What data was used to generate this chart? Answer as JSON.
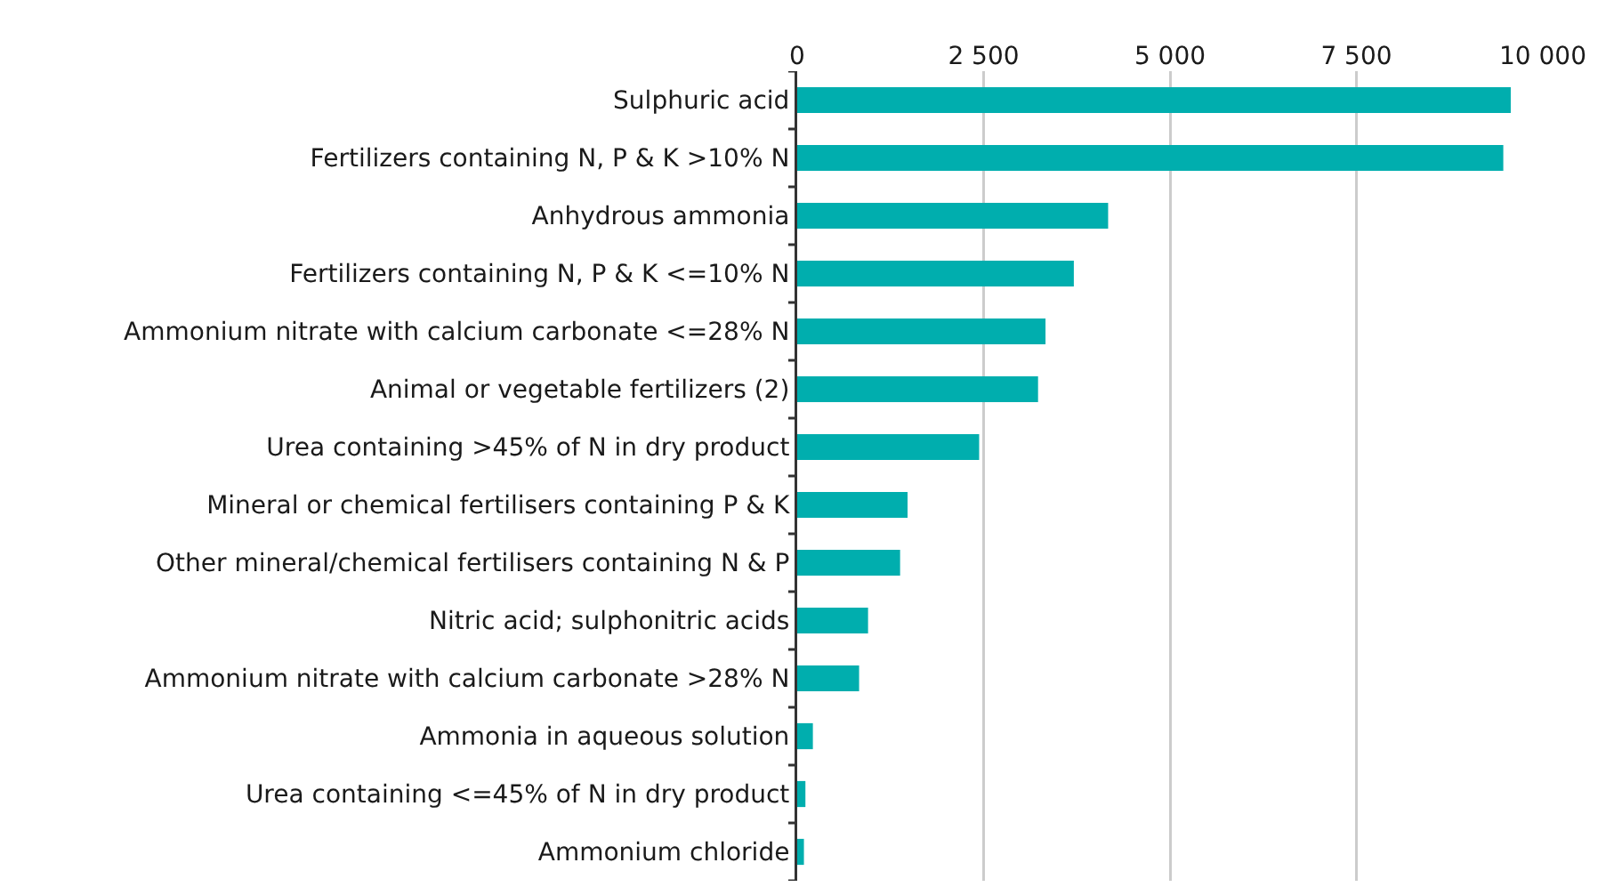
{
  "chart_data": {
    "type": "bar",
    "orientation": "horizontal",
    "categories": [
      "Sulphuric acid",
      "Fertilizers containing N, P & K >10% N",
      "Anhydrous ammonia",
      "Fertilizers containing N, P & K <=10% N",
      "Ammonium nitrate with calcium carbonate <=28% N",
      "Animal or vegetable fertilizers (2)",
      "Urea containing >45% of N in dry product",
      "Mineral or chemical fertilisers containing P & K",
      "Other mineral/chemical fertilisers containing N & P",
      "Nitric acid; sulphonitric acids",
      "Ammonium nitrate with calcium carbonate >28% N",
      "Ammonia in aqueous solution",
      "Urea containing <=45% of N in dry product",
      "Ammonium chloride"
    ],
    "values": [
      9570,
      9470,
      4170,
      3710,
      3330,
      3230,
      2440,
      1480,
      1380,
      950,
      830,
      210,
      110,
      90
    ],
    "color": "#00aeae",
    "xlim": [
      0,
      10000
    ],
    "xticks": [
      0,
      {
        "value": 2500,
        "label": "2 500"
      },
      {
        "value": 5000,
        "label": "5 000"
      },
      {
        "value": 7500,
        "label": "7 500"
      },
      {
        "value": 10000,
        "label": "10 000"
      }
    ],
    "grid": "x",
    "legend": false
  }
}
